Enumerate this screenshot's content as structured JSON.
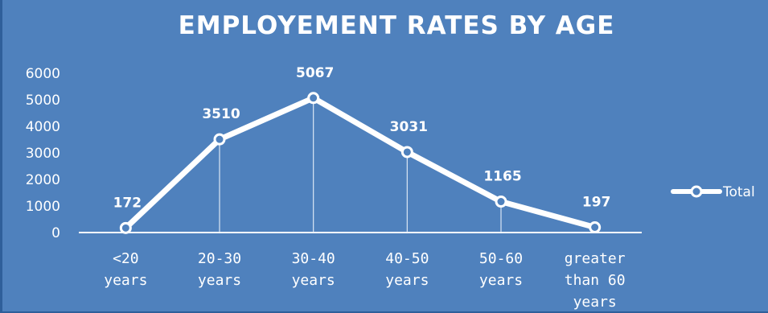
{
  "chart_data": {
    "type": "line",
    "title": "EMPLOYEMENT RATES BY AGE",
    "categories": [
      "<20 years",
      "20-30 years",
      "30-40 years",
      "40-50 years",
      "50-60 years",
      "greater than 60 years"
    ],
    "category_lines": [
      [
        "<20",
        "years"
      ],
      [
        "20-30",
        "years"
      ],
      [
        "30-40",
        "years"
      ],
      [
        "40-50",
        "years"
      ],
      [
        "50-60",
        "years"
      ],
      [
        "greater",
        "than 60",
        "years"
      ]
    ],
    "series": [
      {
        "name": "Total",
        "values": [
          172,
          3510,
          5067,
          3031,
          1165,
          197
        ]
      }
    ],
    "ylim": [
      0,
      6000
    ],
    "yticks": [
      "0",
      "1000",
      "2000",
      "3000",
      "4000",
      "5000",
      "6000"
    ],
    "data_labels": [
      "172",
      "3510",
      "5067",
      "3031",
      "1165",
      "197"
    ],
    "grid": false,
    "drop_lines": true,
    "legend_position": "right",
    "colors": {
      "background": "#4f81bd",
      "line": "#ffffff",
      "text": "#ffffff"
    }
  }
}
